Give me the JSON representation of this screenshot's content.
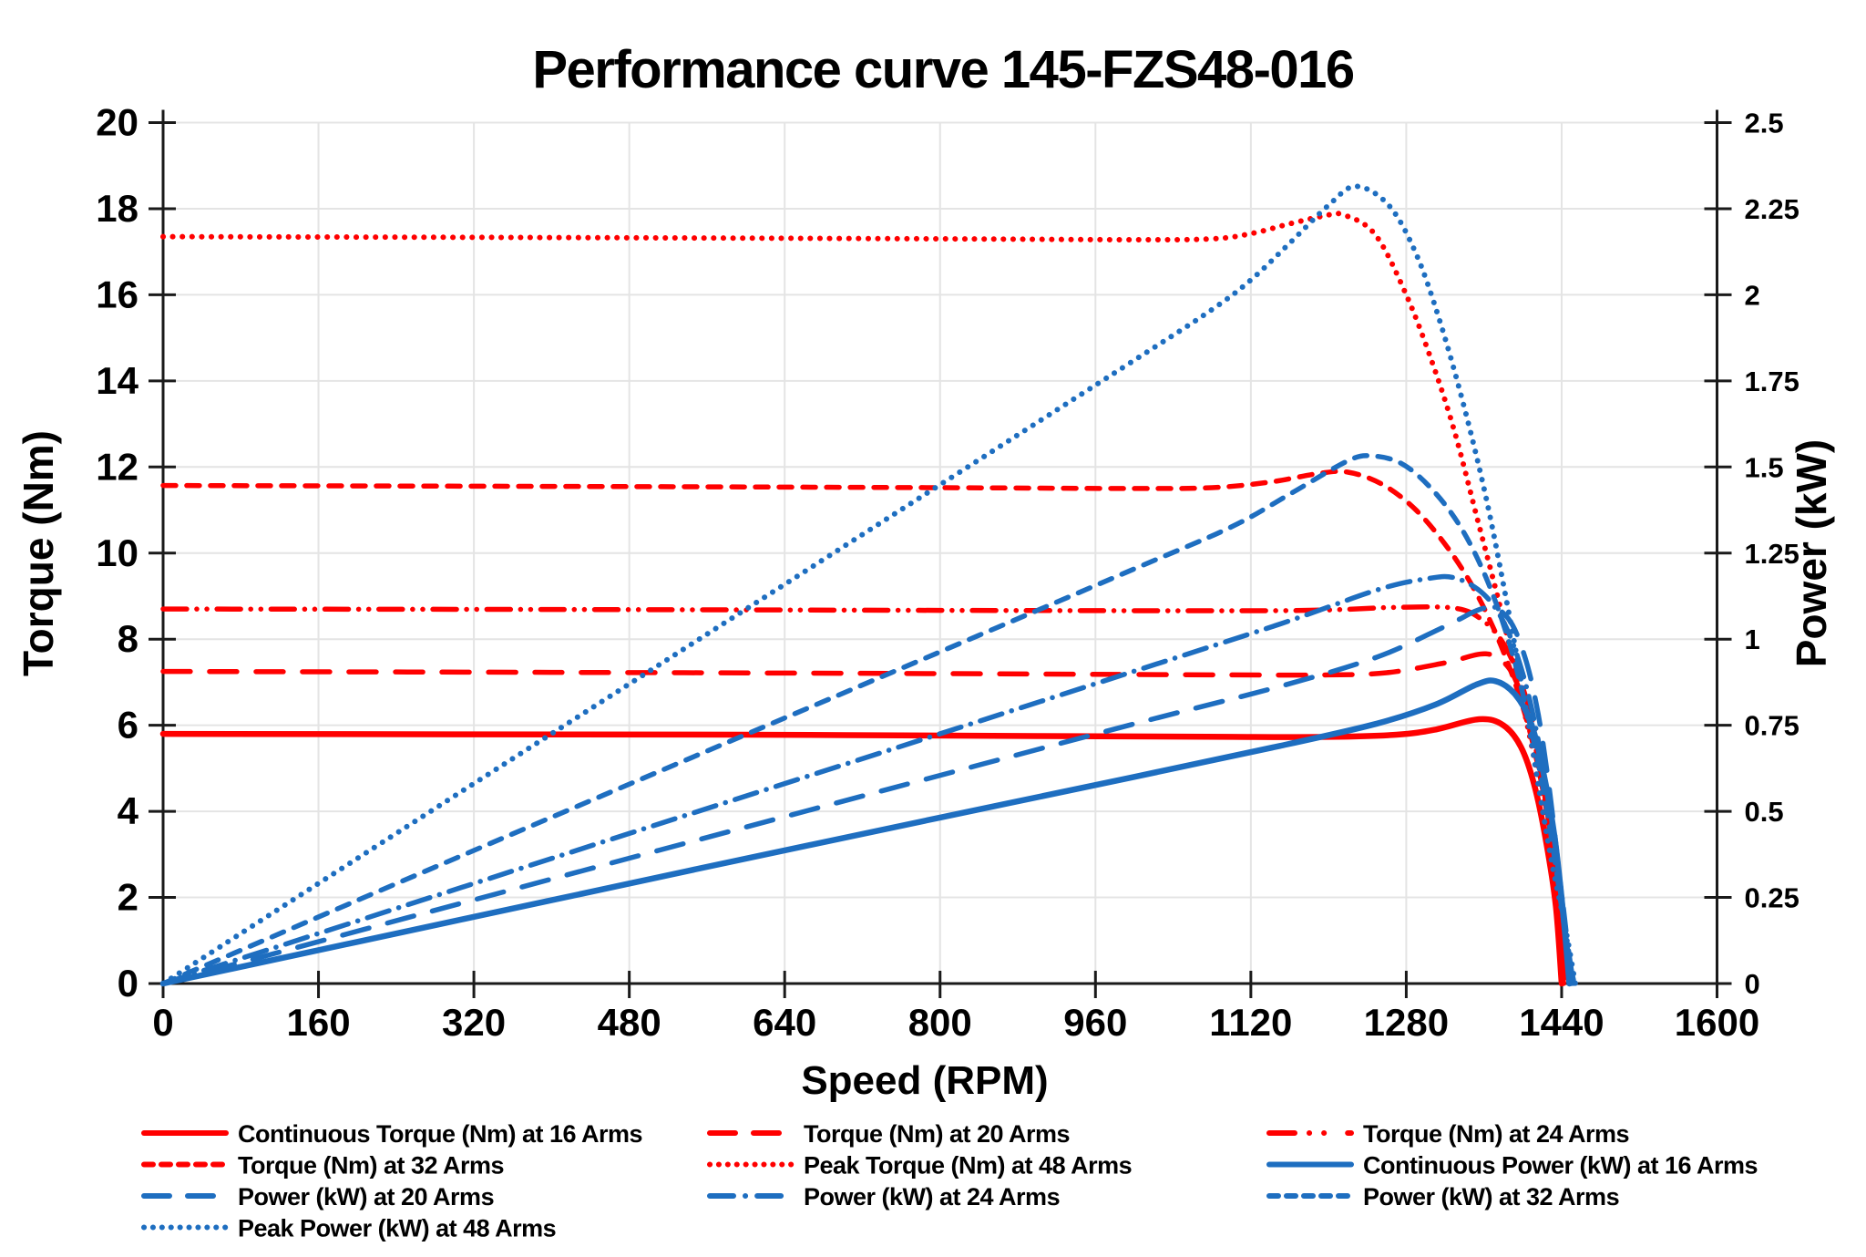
{
  "title": "Performance curve 145-FZS48-016",
  "colors": {
    "torque_red": "#FF0000",
    "power_blue": "#1E6EC0",
    "axis": "#1A1A1A",
    "grid": "#E4E4E4"
  },
  "axes": {
    "x": {
      "label": "Speed (RPM)",
      "min": 0,
      "max": 1600,
      "ticks": [
        0,
        160,
        320,
        480,
        640,
        800,
        960,
        1120,
        1280,
        1440,
        1600
      ]
    },
    "y_left": {
      "label": "Torque (Nm)",
      "min": 0,
      "max": 20,
      "ticks": [
        0,
        2,
        4,
        6,
        8,
        10,
        12,
        14,
        16,
        18,
        20
      ]
    },
    "y_right": {
      "label": "Power (kW)",
      "min": 0,
      "max": 2.5,
      "ticks": [
        0,
        0.25,
        0.5,
        0.75,
        1,
        1.25,
        1.5,
        1.75,
        2,
        2.25,
        2.5
      ]
    }
  },
  "chart_data": {
    "type": "line",
    "legend_position": "bottom",
    "series": [
      {
        "name": "Continuous Torque (Nm) at 16 Arms",
        "axis": "left",
        "color": "#FF0000",
        "dash": "solid",
        "points": [
          [
            0,
            5.8
          ],
          [
            300,
            5.79
          ],
          [
            600,
            5.78
          ],
          [
            900,
            5.75
          ],
          [
            1100,
            5.73
          ],
          [
            1200,
            5.73
          ],
          [
            1270,
            5.78
          ],
          [
            1310,
            5.9
          ],
          [
            1355,
            6.14
          ],
          [
            1380,
            6.0
          ],
          [
            1398,
            5.5
          ],
          [
            1412,
            4.6
          ],
          [
            1424,
            3.3
          ],
          [
            1434,
            1.8
          ],
          [
            1440,
            0
          ]
        ]
      },
      {
        "name": "Torque (Nm) at 20 Arms",
        "axis": "left",
        "color": "#FF0000",
        "dash": "dash",
        "points": [
          [
            0,
            7.25
          ],
          [
            400,
            7.23
          ],
          [
            800,
            7.2
          ],
          [
            1100,
            7.17
          ],
          [
            1200,
            7.17
          ],
          [
            1260,
            7.22
          ],
          [
            1320,
            7.45
          ],
          [
            1362,
            7.66
          ],
          [
            1385,
            7.35
          ],
          [
            1400,
            6.6
          ],
          [
            1413,
            5.5
          ],
          [
            1425,
            4.0
          ],
          [
            1435,
            2.2
          ],
          [
            1442,
            0
          ]
        ]
      },
      {
        "name": "Torque (Nm) at 24 Arms",
        "axis": "left",
        "color": "#FF0000",
        "dash": "dashdotdot",
        "points": [
          [
            0,
            8.7
          ],
          [
            400,
            8.69
          ],
          [
            800,
            8.67
          ],
          [
            1100,
            8.66
          ],
          [
            1200,
            8.68
          ],
          [
            1270,
            8.74
          ],
          [
            1330,
            8.72
          ],
          [
            1358,
            8.45
          ],
          [
            1380,
            7.9
          ],
          [
            1398,
            7.0
          ],
          [
            1413,
            5.8
          ],
          [
            1426,
            4.1
          ],
          [
            1437,
            1.9
          ],
          [
            1444,
            0
          ]
        ]
      },
      {
        "name": "Torque (Nm) at 32 Arms",
        "axis": "left",
        "color": "#FF0000",
        "dash": "sdash",
        "points": [
          [
            0,
            11.57
          ],
          [
            400,
            11.55
          ],
          [
            800,
            11.52
          ],
          [
            1000,
            11.5
          ],
          [
            1080,
            11.52
          ],
          [
            1140,
            11.65
          ],
          [
            1190,
            11.85
          ],
          [
            1220,
            11.88
          ],
          [
            1255,
            11.6
          ],
          [
            1290,
            11.0
          ],
          [
            1325,
            10.05
          ],
          [
            1355,
            8.95
          ],
          [
            1382,
            7.6
          ],
          [
            1403,
            6.2
          ],
          [
            1418,
            4.8
          ],
          [
            1430,
            3.2
          ],
          [
            1440,
            1.4
          ],
          [
            1445,
            0
          ]
        ]
      },
      {
        "name": "Peak Torque (Nm) at 48 Arms",
        "axis": "left",
        "color": "#FF0000",
        "dash": "dot",
        "points": [
          [
            0,
            17.35
          ],
          [
            400,
            17.33
          ],
          [
            800,
            17.3
          ],
          [
            1000,
            17.28
          ],
          [
            1080,
            17.3
          ],
          [
            1120,
            17.42
          ],
          [
            1160,
            17.65
          ],
          [
            1195,
            17.83
          ],
          [
            1215,
            17.86
          ],
          [
            1248,
            17.4
          ],
          [
            1280,
            16.0
          ],
          [
            1308,
            14.35
          ],
          [
            1330,
            12.8
          ],
          [
            1352,
            10.9
          ],
          [
            1375,
            8.9
          ],
          [
            1396,
            6.9
          ],
          [
            1412,
            5.2
          ],
          [
            1425,
            3.6
          ],
          [
            1436,
            1.9
          ],
          [
            1446,
            0
          ]
        ]
      },
      {
        "name": "Continuous Power (kW) at 16 Arms",
        "axis": "right",
        "color": "#1E6EC0",
        "dash": "solid",
        "points": [
          [
            0,
            0
          ],
          [
            200,
            0.121
          ],
          [
            400,
            0.242
          ],
          [
            600,
            0.363
          ],
          [
            800,
            0.482
          ],
          [
            1000,
            0.6
          ],
          [
            1150,
            0.69
          ],
          [
            1250,
            0.755
          ],
          [
            1310,
            0.81
          ],
          [
            1352,
            0.868
          ],
          [
            1372,
            0.878
          ],
          [
            1392,
            0.84
          ],
          [
            1408,
            0.76
          ],
          [
            1420,
            0.63
          ],
          [
            1432,
            0.44
          ],
          [
            1441,
            0.22
          ],
          [
            1448,
            0
          ]
        ]
      },
      {
        "name": "Power (kW) at 20 Arms",
        "axis": "right",
        "color": "#1E6EC0",
        "dash": "dash",
        "points": [
          [
            0,
            0
          ],
          [
            250,
            0.19
          ],
          [
            500,
            0.379
          ],
          [
            750,
            0.567
          ],
          [
            1000,
            0.754
          ],
          [
            1150,
            0.863
          ],
          [
            1250,
            0.948
          ],
          [
            1320,
            1.037
          ],
          [
            1362,
            1.091
          ],
          [
            1385,
            1.06
          ],
          [
            1402,
            0.95
          ],
          [
            1416,
            0.78
          ],
          [
            1428,
            0.55
          ],
          [
            1439,
            0.28
          ],
          [
            1445,
            0.12
          ],
          [
            1450,
            0
          ]
        ]
      },
      {
        "name": "Power (kW) at 24 Arms",
        "axis": "right",
        "color": "#1E6EC0",
        "dash": "dashdot",
        "points": [
          [
            0,
            0
          ],
          [
            250,
            0.227
          ],
          [
            500,
            0.454
          ],
          [
            750,
            0.68
          ],
          [
            1000,
            0.907
          ],
          [
            1150,
            1.044
          ],
          [
            1250,
            1.143
          ],
          [
            1300,
            1.175
          ],
          [
            1330,
            1.178
          ],
          [
            1360,
            1.13
          ],
          [
            1382,
            1.04
          ],
          [
            1400,
            0.9
          ],
          [
            1415,
            0.72
          ],
          [
            1428,
            0.5
          ],
          [
            1440,
            0.26
          ],
          [
            1446,
            0.12
          ],
          [
            1452,
            0
          ]
        ]
      },
      {
        "name": "Power (kW) at 32 Arms",
        "axis": "right",
        "color": "#1E6EC0",
        "dash": "sdash",
        "points": [
          [
            0,
            0
          ],
          [
            250,
            0.302
          ],
          [
            500,
            0.603
          ],
          [
            750,
            0.903
          ],
          [
            1000,
            1.204
          ],
          [
            1100,
            1.326
          ],
          [
            1160,
            1.421
          ],
          [
            1220,
            1.518
          ],
          [
            1245,
            1.532
          ],
          [
            1275,
            1.51
          ],
          [
            1305,
            1.44
          ],
          [
            1335,
            1.33
          ],
          [
            1362,
            1.18
          ],
          [
            1386,
            0.99
          ],
          [
            1406,
            0.77
          ],
          [
            1422,
            0.55
          ],
          [
            1435,
            0.32
          ],
          [
            1446,
            0.1
          ],
          [
            1453,
            0
          ]
        ]
      },
      {
        "name": "Peak Power (kW) at 48 Arms",
        "axis": "right",
        "color": "#1E6EC0",
        "dash": "dot",
        "points": [
          [
            0,
            0
          ],
          [
            250,
            0.454
          ],
          [
            500,
            0.906
          ],
          [
            750,
            1.358
          ],
          [
            1000,
            1.81
          ],
          [
            1080,
            1.957
          ],
          [
            1120,
            2.043
          ],
          [
            1160,
            2.15
          ],
          [
            1200,
            2.26
          ],
          [
            1228,
            2.315
          ],
          [
            1262,
            2.26
          ],
          [
            1290,
            2.12
          ],
          [
            1315,
            1.92
          ],
          [
            1340,
            1.67
          ],
          [
            1363,
            1.4
          ],
          [
            1384,
            1.1
          ],
          [
            1402,
            0.82
          ],
          [
            1417,
            0.56
          ],
          [
            1430,
            0.35
          ],
          [
            1444,
            0.16
          ],
          [
            1454,
            0
          ]
        ]
      }
    ]
  }
}
